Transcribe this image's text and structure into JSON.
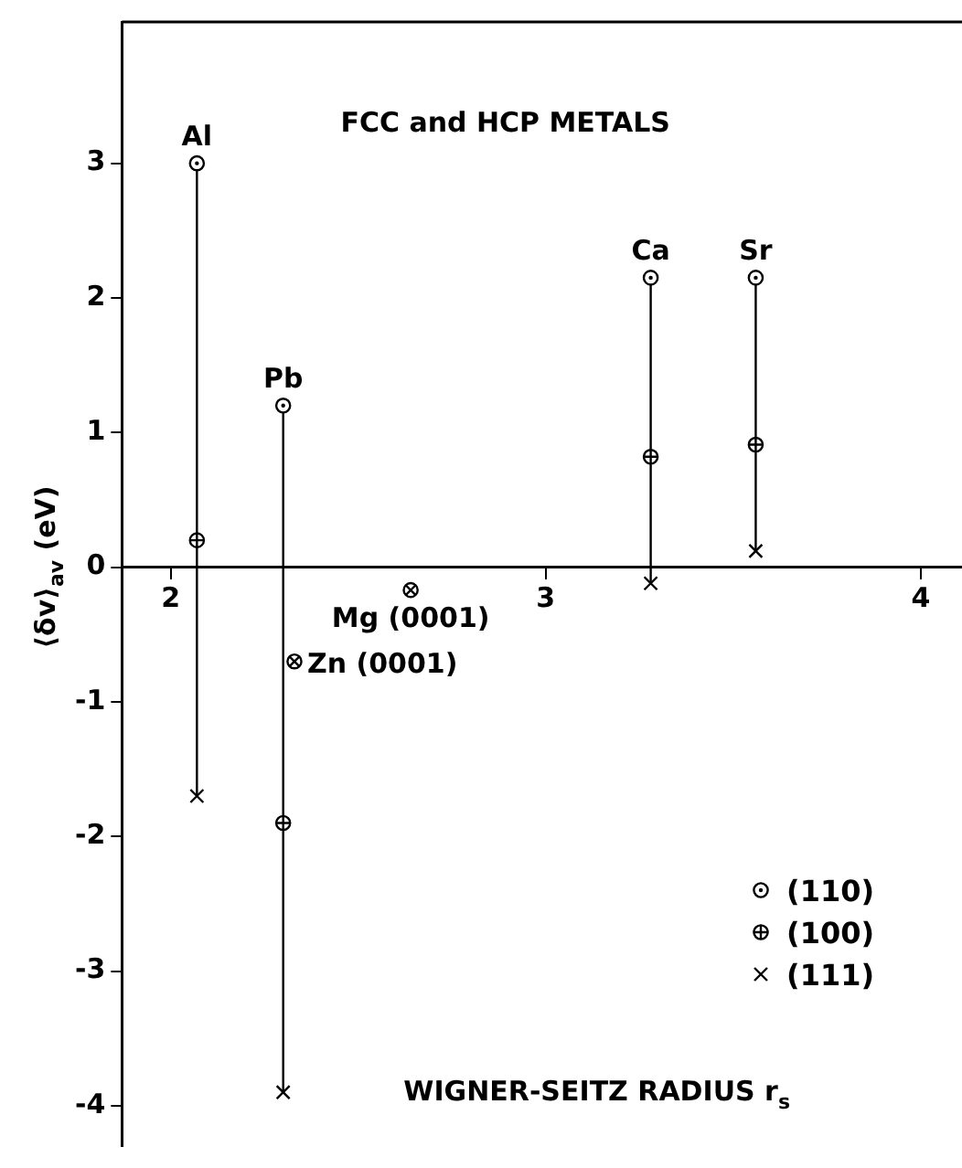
{
  "chart_data": {
    "type": "scatter",
    "title": "FCC and HCP METALS",
    "xlabel": "WIGNER-SEITZ RADIUS r$_{s}$",
    "ylabel": "⟨δv⟩$_{av}$ (eV)",
    "xlim": [
      1.87,
      4.11
    ],
    "ylim": [
      -4.3,
      4.05
    ],
    "xticks": [
      2,
      3,
      4
    ],
    "yticks": [
      -4,
      -3,
      -2,
      -1,
      0,
      1,
      2,
      3
    ],
    "legend": "bottom right",
    "series": [
      {
        "name": "(110)",
        "color": "#000000",
        "marker": "circle",
        "x": [
          2.07,
          2.3,
          3.28,
          3.56
        ],
        "values": [
          3.0,
          1.2,
          2.15,
          2.15
        ]
      },
      {
        "name": "(100)",
        "color": "#000000",
        "marker": "circle",
        "x": [
          2.07,
          2.3,
          3.28,
          3.56
        ],
        "values": [
          0.2,
          -1.9,
          0.82,
          0.91
        ]
      },
      {
        "name": "(111)",
        "color": "#000000",
        "marker": "cross",
        "x": [
          2.07,
          2.3,
          3.28,
          3.56
        ],
        "values": [
          -1.7,
          -3.9,
          -0.12,
          0.12
        ]
      },
      {
        "color": "#000000",
        "marker": "circle",
        "x": [
          2.64,
          2.33
        ],
        "values": [
          -0.17,
          -0.7
        ]
      }
    ],
    "annotations": [
      {
        "text": "Al",
        "x": 2.07,
        "y": 3.0
      },
      {
        "text": "Pb",
        "x": 2.3,
        "y": 1.2
      },
      {
        "text": "Ca",
        "x": 3.28,
        "y": 2.15
      },
      {
        "text": "Sr",
        "x": 3.56,
        "y": 2.15
      },
      {
        "text": "Mg (0001)",
        "x": 2.64,
        "y": -0.17
      },
      {
        "text": "Zn (0001)",
        "x": 2.33,
        "y": -0.7
      }
    ]
  }
}
